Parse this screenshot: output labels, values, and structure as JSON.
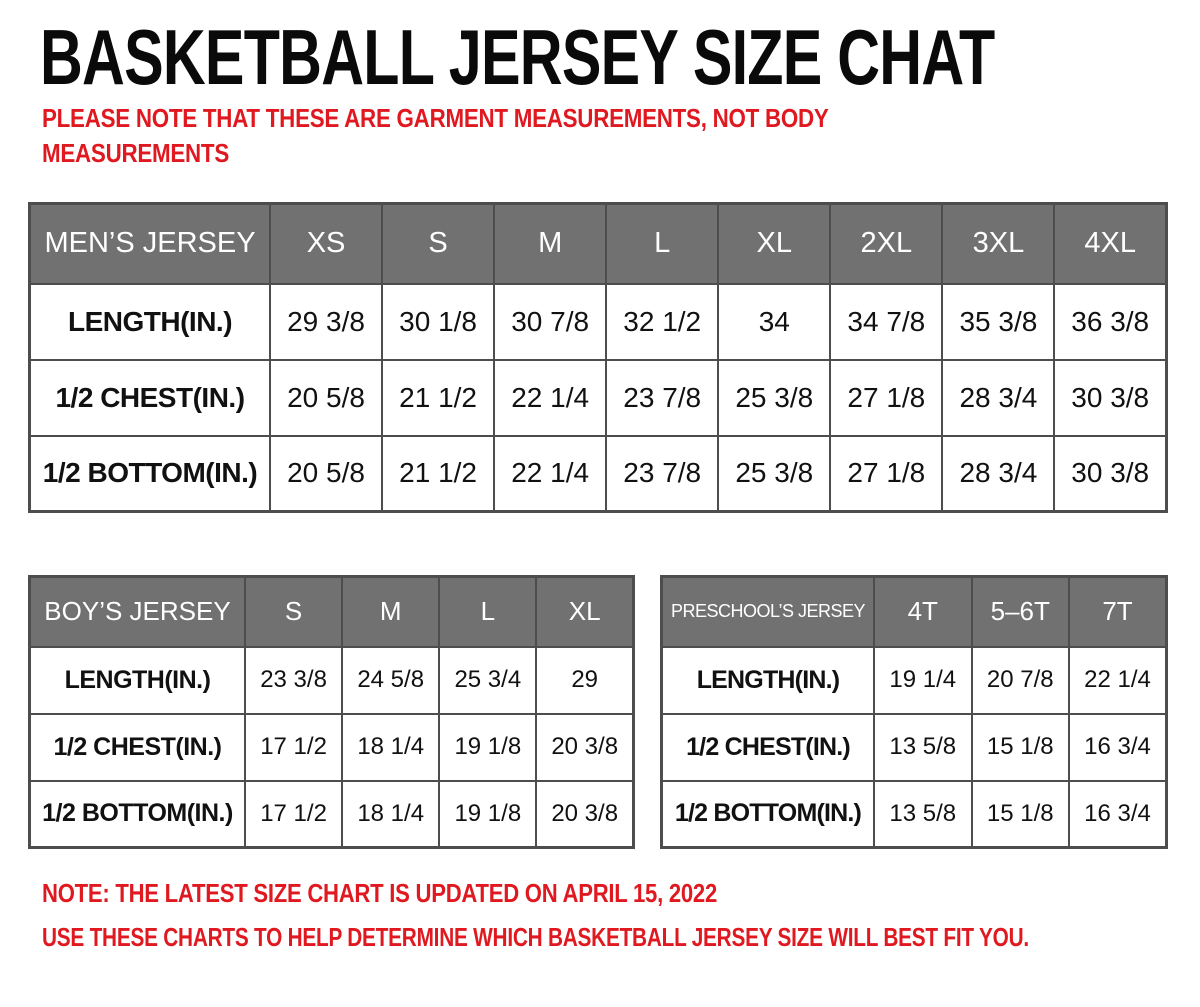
{
  "header": {
    "title": "BASKETBALL JERSEY SIZE CHAT",
    "subtitle": "PLEASE NOTE THAT THESE ARE GARMENT MEASUREMENTS, NOT BODY MEASUREMENTS"
  },
  "chart_data": [
    {
      "type": "table",
      "name": "mens-jersey",
      "title": "MEN’S JERSEY",
      "columns": [
        "XS",
        "S",
        "M",
        "L",
        "XL",
        "2XL",
        "3XL",
        "4XL"
      ],
      "rows": [
        {
          "label": "LENGTH(IN.)",
          "values": [
            "29 3/8",
            "30 1/8",
            "30 7/8",
            "32 1/2",
            "34",
            "34 7/8",
            "35 3/8",
            "36 3/8"
          ]
        },
        {
          "label": "1/2 CHEST(IN.)",
          "values": [
            "20 5/8",
            "21 1/2",
            "22 1/4",
            "23 7/8",
            "25 3/8",
            "27 1/8",
            "28 3/4",
            "30 3/8"
          ]
        },
        {
          "label": "1/2 BOTTOM(IN.)",
          "values": [
            "20 5/8",
            "21 1/2",
            "22 1/4",
            "23 7/8",
            "25 3/8",
            "27 1/8",
            "28 3/4",
            "30 3/8"
          ]
        }
      ]
    },
    {
      "type": "table",
      "name": "boys-jersey",
      "title": "BOY’S JERSEY",
      "columns": [
        "S",
        "M",
        "L",
        "XL"
      ],
      "rows": [
        {
          "label": "LENGTH(IN.)",
          "values": [
            "23 3/8",
            "24 5/8",
            "25 3/4",
            "29"
          ]
        },
        {
          "label": "1/2 CHEST(IN.)",
          "values": [
            "17 1/2",
            "18 1/4",
            "19 1/8",
            "20 3/8"
          ]
        },
        {
          "label": "1/2 BOTTOM(IN.)",
          "values": [
            "17 1/2",
            "18 1/4",
            "19 1/8",
            "20 3/8"
          ]
        }
      ]
    },
    {
      "type": "table",
      "name": "preschools-jersey",
      "title": "PRESCHOOL’S JERSEY",
      "columns": [
        "4T",
        "5–6T",
        "7T"
      ],
      "rows": [
        {
          "label": "LENGTH(IN.)",
          "values": [
            "19 1/4",
            "20 7/8",
            "22 1/4"
          ]
        },
        {
          "label": "1/2 CHEST(IN.)",
          "values": [
            "13 5/8",
            "15 1/8",
            "16 3/4"
          ]
        },
        {
          "label": "1/2 BOTTOM(IN.)",
          "values": [
            "13 5/8",
            "15 1/8",
            "16 3/4"
          ]
        }
      ]
    }
  ],
  "notes": [
    "NOTE: THE LATEST SIZE CHART IS UPDATED ON APRIL 15, 2022",
    "USE THESE CHARTS TO HELP DETERMINE WHICH BASKETBALL JERSEY SIZE WILL BEST FIT YOU."
  ],
  "colors": {
    "accent_red": "#e01920",
    "header_gray": "#717171",
    "border_dark": "#4d4d4d",
    "text_black": "#111111",
    "background": "#ffffff"
  }
}
